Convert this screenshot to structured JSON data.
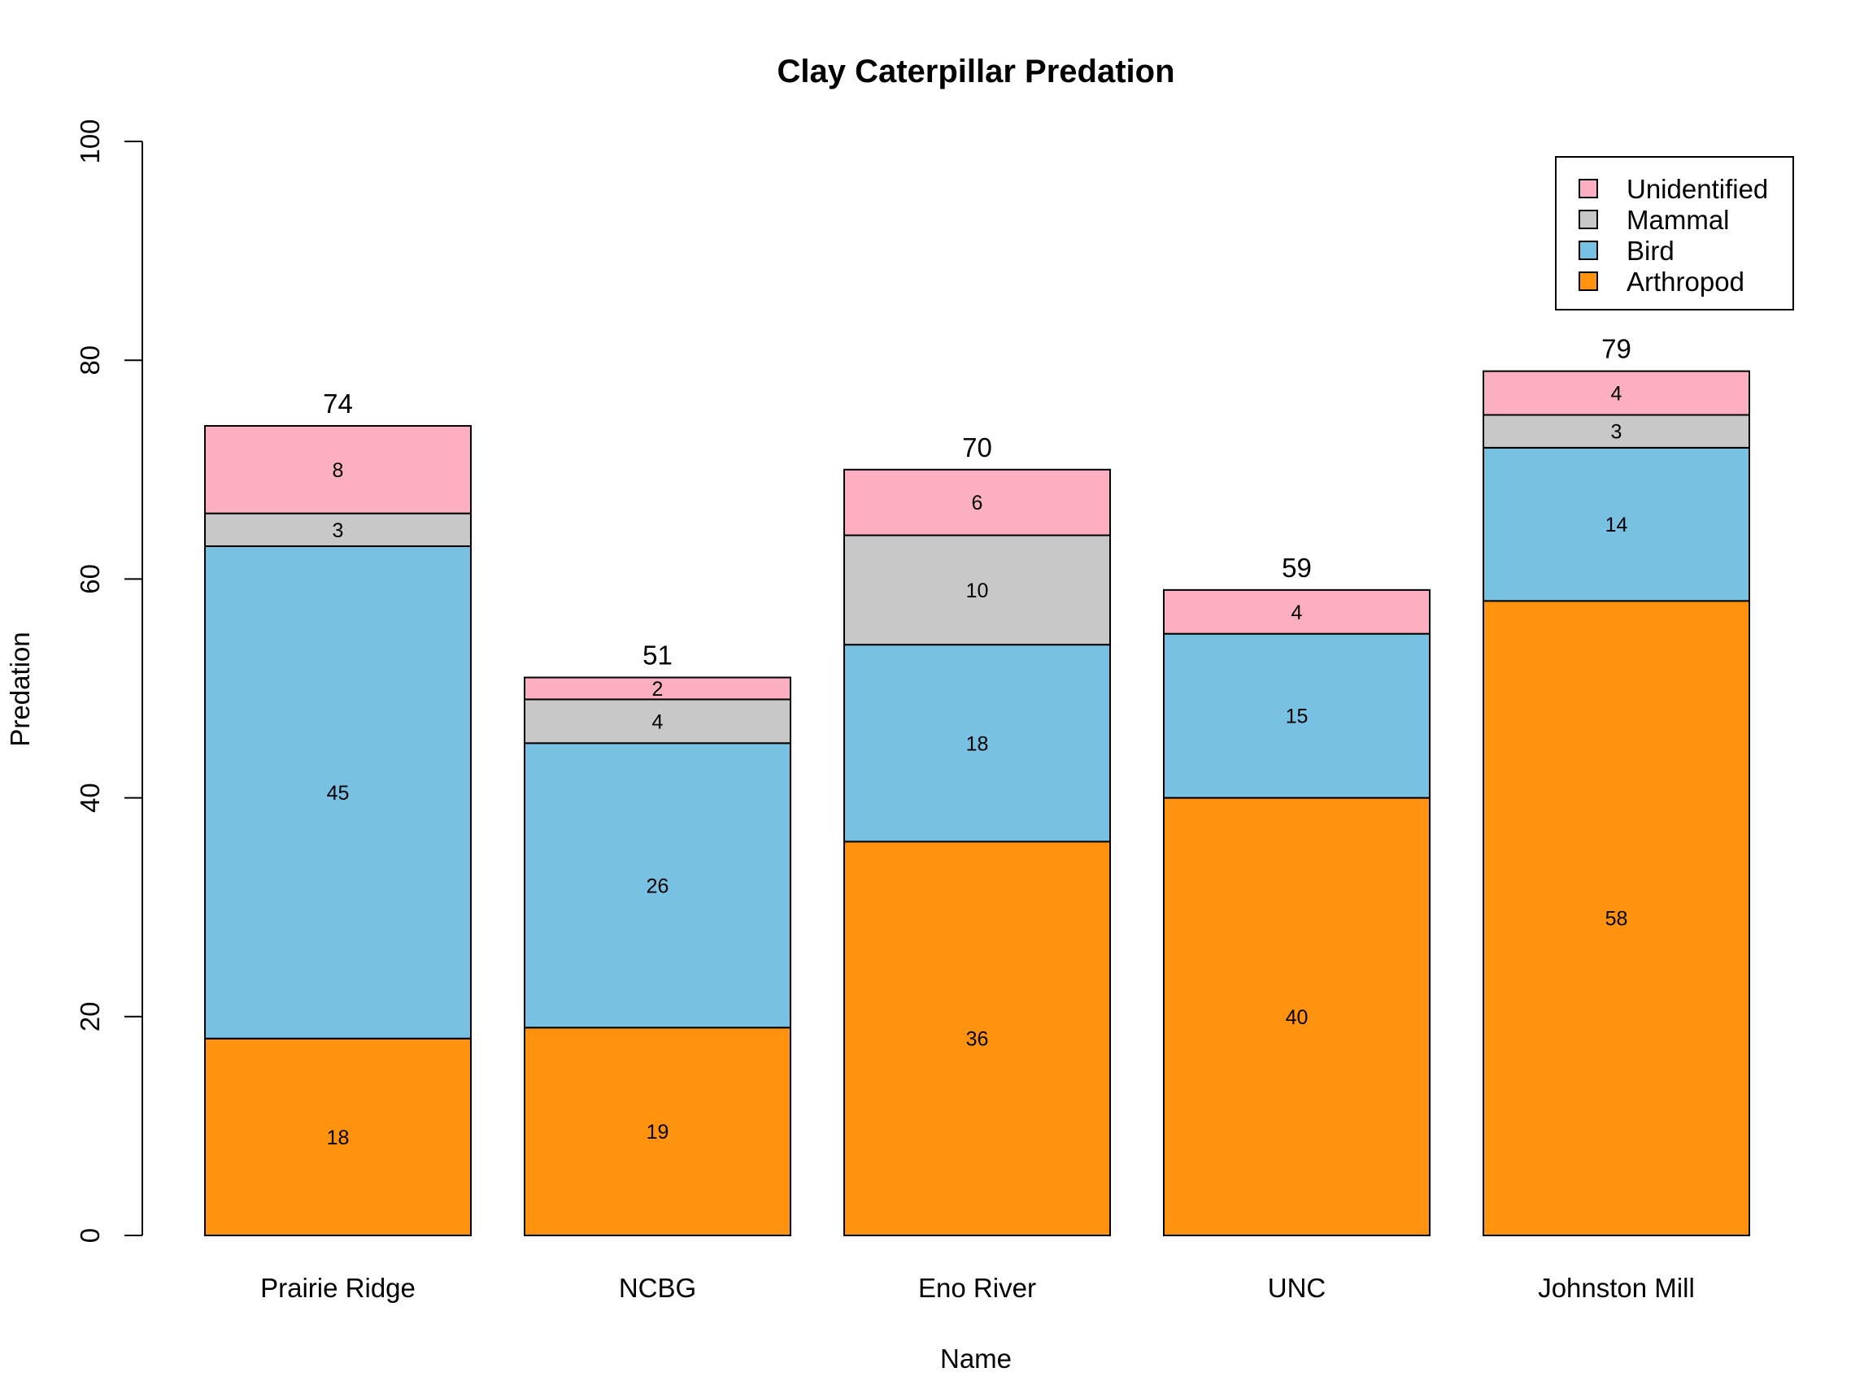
{
  "chart_data": {
    "type": "bar",
    "stacked": true,
    "title": "Clay Caterpillar Predation",
    "xlabel": "Name",
    "ylabel": "Predation",
    "ylim": [
      0,
      100
    ],
    "yticks": [
      0,
      20,
      40,
      60,
      80,
      100
    ],
    "categories": [
      "Prairie Ridge",
      "NCBG",
      "Eno River",
      "UNC",
      "Johnston Mill"
    ],
    "series": [
      {
        "name": "Arthropod",
        "color": "#FF930F",
        "values": [
          18,
          19,
          36,
          40,
          58
        ]
      },
      {
        "name": "Bird",
        "color": "#78C1E3",
        "values": [
          45,
          26,
          18,
          15,
          14
        ]
      },
      {
        "name": "Mammal",
        "color": "#C8C8C8",
        "values": [
          3,
          4,
          10,
          0,
          3
        ]
      },
      {
        "name": "Unidentified",
        "color": "#FCAFC0",
        "values": [
          8,
          2,
          6,
          4,
          4
        ]
      }
    ],
    "totals": [
      74,
      51,
      70,
      59,
      79
    ],
    "legend": {
      "placement": "top-right",
      "order": [
        "Unidentified",
        "Mammal",
        "Bird",
        "Arthropod"
      ]
    },
    "grid": false
  }
}
